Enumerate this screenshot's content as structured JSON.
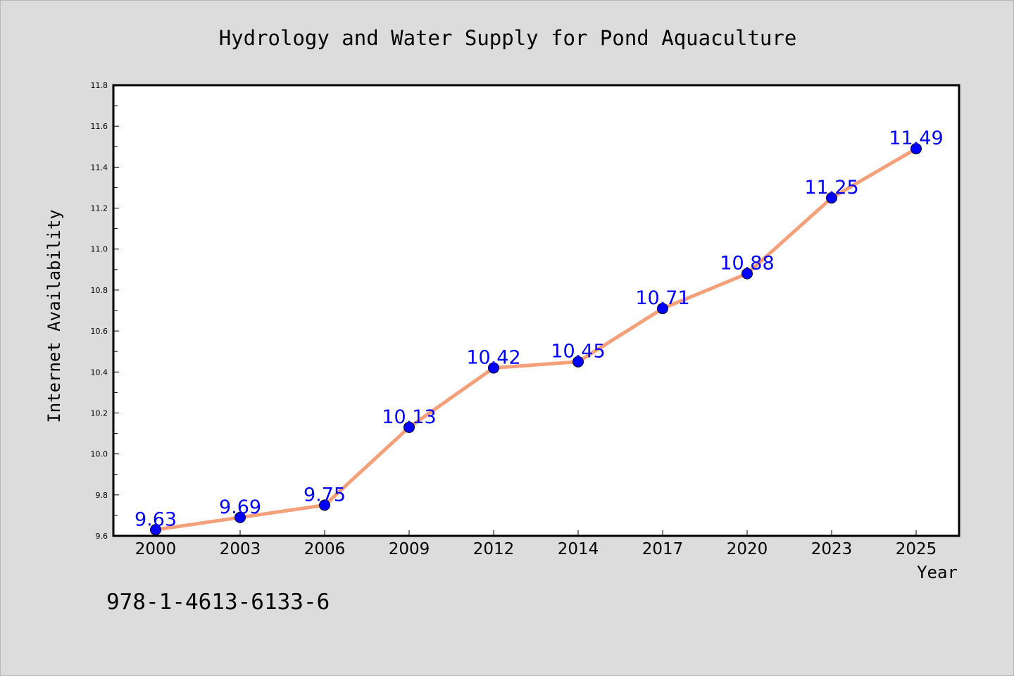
{
  "chart_data": {
    "type": "line",
    "title": "Hydrology and Water Supply for Pond Aquaculture",
    "xlabel": "Year",
    "ylabel": "Internet Availability",
    "categories": [
      "2000",
      "2003",
      "2006",
      "2009",
      "2012",
      "2014",
      "2017",
      "2020",
      "2023",
      "2025"
    ],
    "series": [
      {
        "values": [
          9.63,
          9.69,
          9.75,
          10.13,
          10.42,
          10.45,
          10.71,
          10.88,
          11.25,
          11.49
        ],
        "data_labels": [
          "9.63",
          "9.69",
          "9.75",
          "10.13",
          "10.42",
          "10.45",
          "10.71",
          "10.88",
          "11.25",
          "11.49"
        ]
      }
    ],
    "ylim": [
      9.6,
      11.8
    ],
    "yticks": [
      "9.6",
      "9.8",
      "10.0",
      "10.2",
      "10.4",
      "10.6",
      "10.8",
      "11.0",
      "11.2",
      "11.4",
      "11.6",
      "11.8"
    ],
    "grid": false,
    "legend": "none",
    "colors": {
      "line": "#f4a07a",
      "marker": "#0000ff",
      "data_label": "#0000ff",
      "background": "#dcdcdc",
      "plot_background": "#ffffff"
    }
  },
  "footer": {
    "isbn": "978-1-4613-6133-6"
  }
}
